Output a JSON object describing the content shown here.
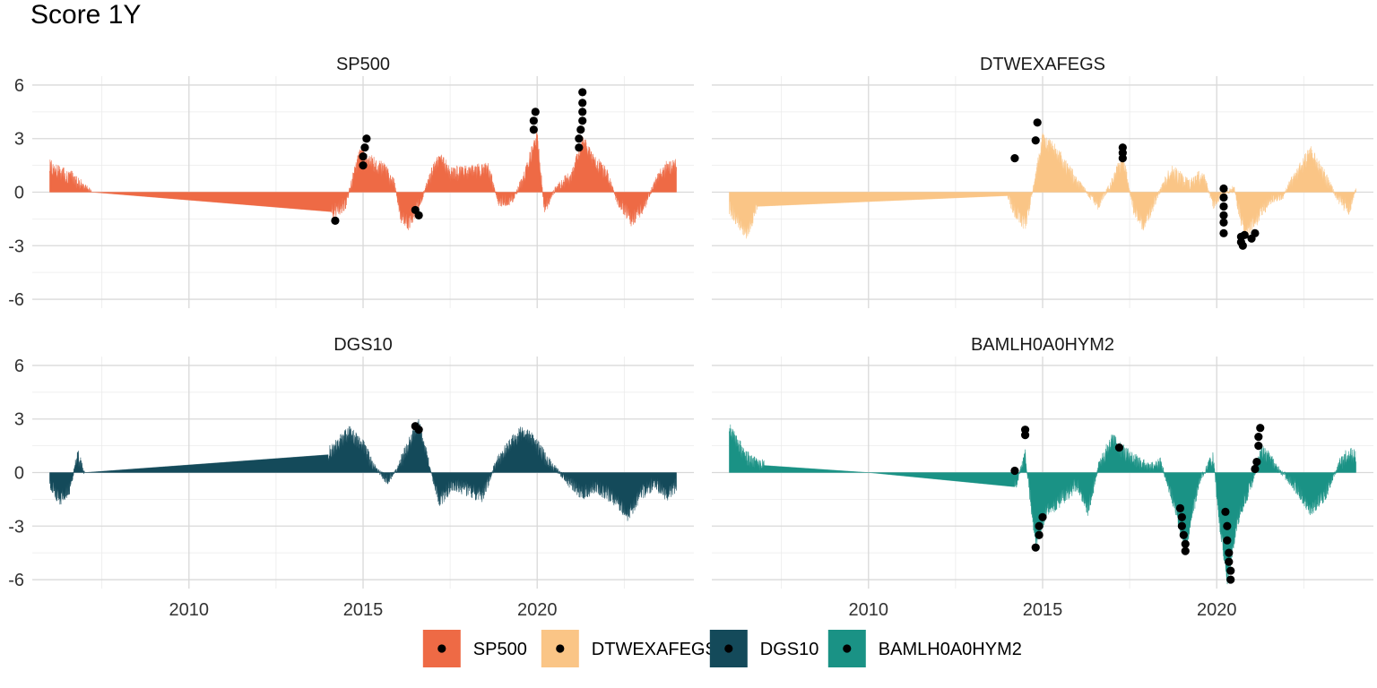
{
  "chart_data": {
    "type": "area",
    "title": "Score 1Y",
    "xlabel": "",
    "ylabel": "",
    "x_ticks": [
      2010,
      2015,
      2020
    ],
    "y_ticks": [
      -6,
      -3,
      0,
      3,
      6
    ],
    "xlim": [
      2005.5,
      2024.5
    ],
    "ylim": [
      -6.5,
      6.5
    ],
    "grid": true,
    "legend_position": "bottom",
    "colors": {
      "SP500": "#EE6A45",
      "DTWEXAFEGS": "#FAC586",
      "DGS10": "#144A5A",
      "BAMLH0A0HYM2": "#1A9285"
    },
    "series": [
      {
        "name": "SP500",
        "profile": [
          [
            2006.0,
            1.4
          ],
          [
            2006.3,
            1.0
          ],
          [
            2006.6,
            0.8
          ],
          [
            2006.9,
            0.4
          ],
          [
            2007.2,
            0.0
          ],
          [
            2014.1,
            -1.1
          ],
          [
            2014.5,
            -0.6
          ],
          [
            2014.9,
            2.0
          ],
          [
            2015.2,
            1.7
          ],
          [
            2015.6,
            1.2
          ],
          [
            2015.9,
            0.4
          ],
          [
            2016.1,
            -1.3
          ],
          [
            2016.3,
            -1.7
          ],
          [
            2016.6,
            -0.7
          ],
          [
            2016.9,
            0.7
          ],
          [
            2017.2,
            1.9
          ],
          [
            2017.5,
            1.0
          ],
          [
            2018.0,
            1.1
          ],
          [
            2018.6,
            1.2
          ],
          [
            2018.9,
            -0.5
          ],
          [
            2019.3,
            -0.4
          ],
          [
            2019.6,
            0.7
          ],
          [
            2020.0,
            3.1
          ],
          [
            2020.2,
            -0.9
          ],
          [
            2020.5,
            0.1
          ],
          [
            2021.0,
            0.9
          ],
          [
            2021.3,
            2.8
          ],
          [
            2021.7,
            1.6
          ],
          [
            2022.0,
            0.9
          ],
          [
            2022.3,
            -0.4
          ],
          [
            2022.7,
            -1.5
          ],
          [
            2023.0,
            -0.9
          ],
          [
            2023.4,
            0.5
          ],
          [
            2023.7,
            1.3
          ],
          [
            2024.0,
            1.5
          ]
        ],
        "flags": [
          [
            2014.2,
            -1.6
          ],
          [
            2015.0,
            1.5
          ],
          [
            2015.0,
            2.0
          ],
          [
            2015.05,
            2.5
          ],
          [
            2015.1,
            3.0
          ],
          [
            2016.5,
            -1.0
          ],
          [
            2016.6,
            -1.3
          ],
          [
            2019.9,
            3.5
          ],
          [
            2019.9,
            4.0
          ],
          [
            2019.95,
            4.5
          ],
          [
            2021.2,
            2.5
          ],
          [
            2021.2,
            3.0
          ],
          [
            2021.25,
            3.5
          ],
          [
            2021.3,
            4.0
          ],
          [
            2021.3,
            4.5
          ],
          [
            2021.3,
            5.0
          ],
          [
            2021.3,
            5.6
          ]
        ]
      },
      {
        "name": "DTWEXAFEGS",
        "profile": [
          [
            2006.0,
            -0.8
          ],
          [
            2006.2,
            -1.5
          ],
          [
            2006.5,
            -2.2
          ],
          [
            2006.8,
            -0.8
          ],
          [
            2014.0,
            -0.2
          ],
          [
            2014.2,
            -1.0
          ],
          [
            2014.5,
            -1.8
          ],
          [
            2014.8,
            0.8
          ],
          [
            2015.0,
            2.9
          ],
          [
            2015.4,
            2.2
          ],
          [
            2015.8,
            1.0
          ],
          [
            2016.2,
            0.1
          ],
          [
            2016.6,
            -0.6
          ],
          [
            2017.0,
            0.5
          ],
          [
            2017.3,
            1.8
          ],
          [
            2017.6,
            -0.8
          ],
          [
            2017.9,
            -1.8
          ],
          [
            2018.3,
            -0.2
          ],
          [
            2018.7,
            1.1
          ],
          [
            2019.2,
            0.4
          ],
          [
            2019.6,
            0.9
          ],
          [
            2019.9,
            -0.6
          ],
          [
            2020.1,
            -0.2
          ],
          [
            2020.5,
            0.2
          ],
          [
            2020.8,
            -2.2
          ],
          [
            2021.1,
            -1.6
          ],
          [
            2021.5,
            -0.4
          ],
          [
            2021.9,
            -0.2
          ],
          [
            2022.3,
            1.0
          ],
          [
            2022.7,
            2.2
          ],
          [
            2023.1,
            0.8
          ],
          [
            2023.5,
            -0.4
          ],
          [
            2023.8,
            -0.9
          ],
          [
            2024.0,
            0.2
          ]
        ],
        "flags": [
          [
            2014.2,
            1.9
          ],
          [
            2014.8,
            2.9
          ],
          [
            2014.85,
            3.9
          ],
          [
            2017.3,
            1.9
          ],
          [
            2017.3,
            2.2
          ],
          [
            2017.3,
            2.5
          ],
          [
            2020.2,
            0.2
          ],
          [
            2020.2,
            -0.3
          ],
          [
            2020.2,
            -0.8
          ],
          [
            2020.2,
            -1.3
          ],
          [
            2020.2,
            -1.7
          ],
          [
            2020.2,
            -2.3
          ],
          [
            2020.7,
            -2.5
          ],
          [
            2020.7,
            -2.8
          ],
          [
            2020.75,
            -3.0
          ],
          [
            2020.8,
            -2.4
          ],
          [
            2021.0,
            -2.6
          ],
          [
            2021.1,
            -2.3
          ]
        ]
      },
      {
        "name": "DGS10",
        "profile": [
          [
            2006.0,
            -0.6
          ],
          [
            2006.3,
            -1.5
          ],
          [
            2006.6,
            -0.7
          ],
          [
            2006.8,
            0.9
          ],
          [
            2007.0,
            0.0
          ],
          [
            2014.0,
            1.0
          ],
          [
            2014.3,
            1.6
          ],
          [
            2014.6,
            2.2
          ],
          [
            2015.0,
            1.4
          ],
          [
            2015.3,
            0.3
          ],
          [
            2015.7,
            -0.4
          ],
          [
            2016.0,
            0.2
          ],
          [
            2016.3,
            1.5
          ],
          [
            2016.6,
            2.6
          ],
          [
            2016.9,
            0.4
          ],
          [
            2017.2,
            -1.5
          ],
          [
            2017.6,
            -0.6
          ],
          [
            2018.0,
            -0.9
          ],
          [
            2018.4,
            -1.3
          ],
          [
            2018.8,
            0.4
          ],
          [
            2019.2,
            1.5
          ],
          [
            2019.6,
            2.3
          ],
          [
            2019.9,
            1.7
          ],
          [
            2020.3,
            0.6
          ],
          [
            2020.8,
            -0.3
          ],
          [
            2021.3,
            -1.1
          ],
          [
            2021.7,
            -0.7
          ],
          [
            2022.2,
            -1.4
          ],
          [
            2022.6,
            -2.3
          ],
          [
            2023.0,
            -1.1
          ],
          [
            2023.4,
            -0.5
          ],
          [
            2023.7,
            -1.2
          ],
          [
            2024.0,
            -0.7
          ]
        ],
        "flags": [
          [
            2016.5,
            2.6
          ],
          [
            2016.6,
            2.4
          ]
        ]
      },
      {
        "name": "BAMLH0A0HYM2",
        "profile": [
          [
            2006.0,
            2.4
          ],
          [
            2006.3,
            1.4
          ],
          [
            2006.6,
            0.6
          ],
          [
            2007.0,
            0.4
          ],
          [
            2010.0,
            0.0
          ],
          [
            2014.2,
            -0.8
          ],
          [
            2014.5,
            0.9
          ],
          [
            2014.8,
            -3.8
          ],
          [
            2015.1,
            -2.2
          ],
          [
            2015.5,
            -1.5
          ],
          [
            2016.0,
            -0.6
          ],
          [
            2016.3,
            -2.0
          ],
          [
            2016.6,
            0.3
          ],
          [
            2017.0,
            1.8
          ],
          [
            2017.4,
            1.0
          ],
          [
            2017.8,
            0.5
          ],
          [
            2018.1,
            0.3
          ],
          [
            2018.4,
            0.5
          ],
          [
            2018.8,
            -1.8
          ],
          [
            2019.1,
            -4.3
          ],
          [
            2019.5,
            -0.4
          ],
          [
            2019.9,
            0.8
          ],
          [
            2020.1,
            -3.0
          ],
          [
            2020.3,
            -5.9
          ],
          [
            2020.6,
            -2.6
          ],
          [
            2021.0,
            -0.6
          ],
          [
            2021.3,
            1.2
          ],
          [
            2021.7,
            0.3
          ],
          [
            2022.2,
            -0.6
          ],
          [
            2022.7,
            -2.0
          ],
          [
            2023.1,
            -1.2
          ],
          [
            2023.5,
            0.4
          ],
          [
            2023.8,
            1.0
          ],
          [
            2024.0,
            0.8
          ]
        ],
        "flags": [
          [
            2014.2,
            0.1
          ],
          [
            2014.5,
            2.1
          ],
          [
            2014.5,
            2.4
          ],
          [
            2014.8,
            -4.2
          ],
          [
            2014.9,
            -3.5
          ],
          [
            2014.9,
            -3.0
          ],
          [
            2015.0,
            -2.5
          ],
          [
            2017.2,
            1.4
          ],
          [
            2018.95,
            -2.0
          ],
          [
            2019.0,
            -2.5
          ],
          [
            2019.0,
            -3.0
          ],
          [
            2019.05,
            -3.5
          ],
          [
            2019.1,
            -4.0
          ],
          [
            2019.1,
            -4.4
          ],
          [
            2020.25,
            -2.2
          ],
          [
            2020.3,
            -3.0
          ],
          [
            2020.3,
            -3.8
          ],
          [
            2020.35,
            -4.5
          ],
          [
            2020.35,
            -5.0
          ],
          [
            2020.4,
            -5.5
          ],
          [
            2020.4,
            -6.0
          ],
          [
            2021.1,
            0.2
          ],
          [
            2021.15,
            0.6
          ],
          [
            2021.2,
            1.5
          ],
          [
            2021.2,
            2.0
          ],
          [
            2021.25,
            2.5
          ]
        ]
      }
    ]
  }
}
